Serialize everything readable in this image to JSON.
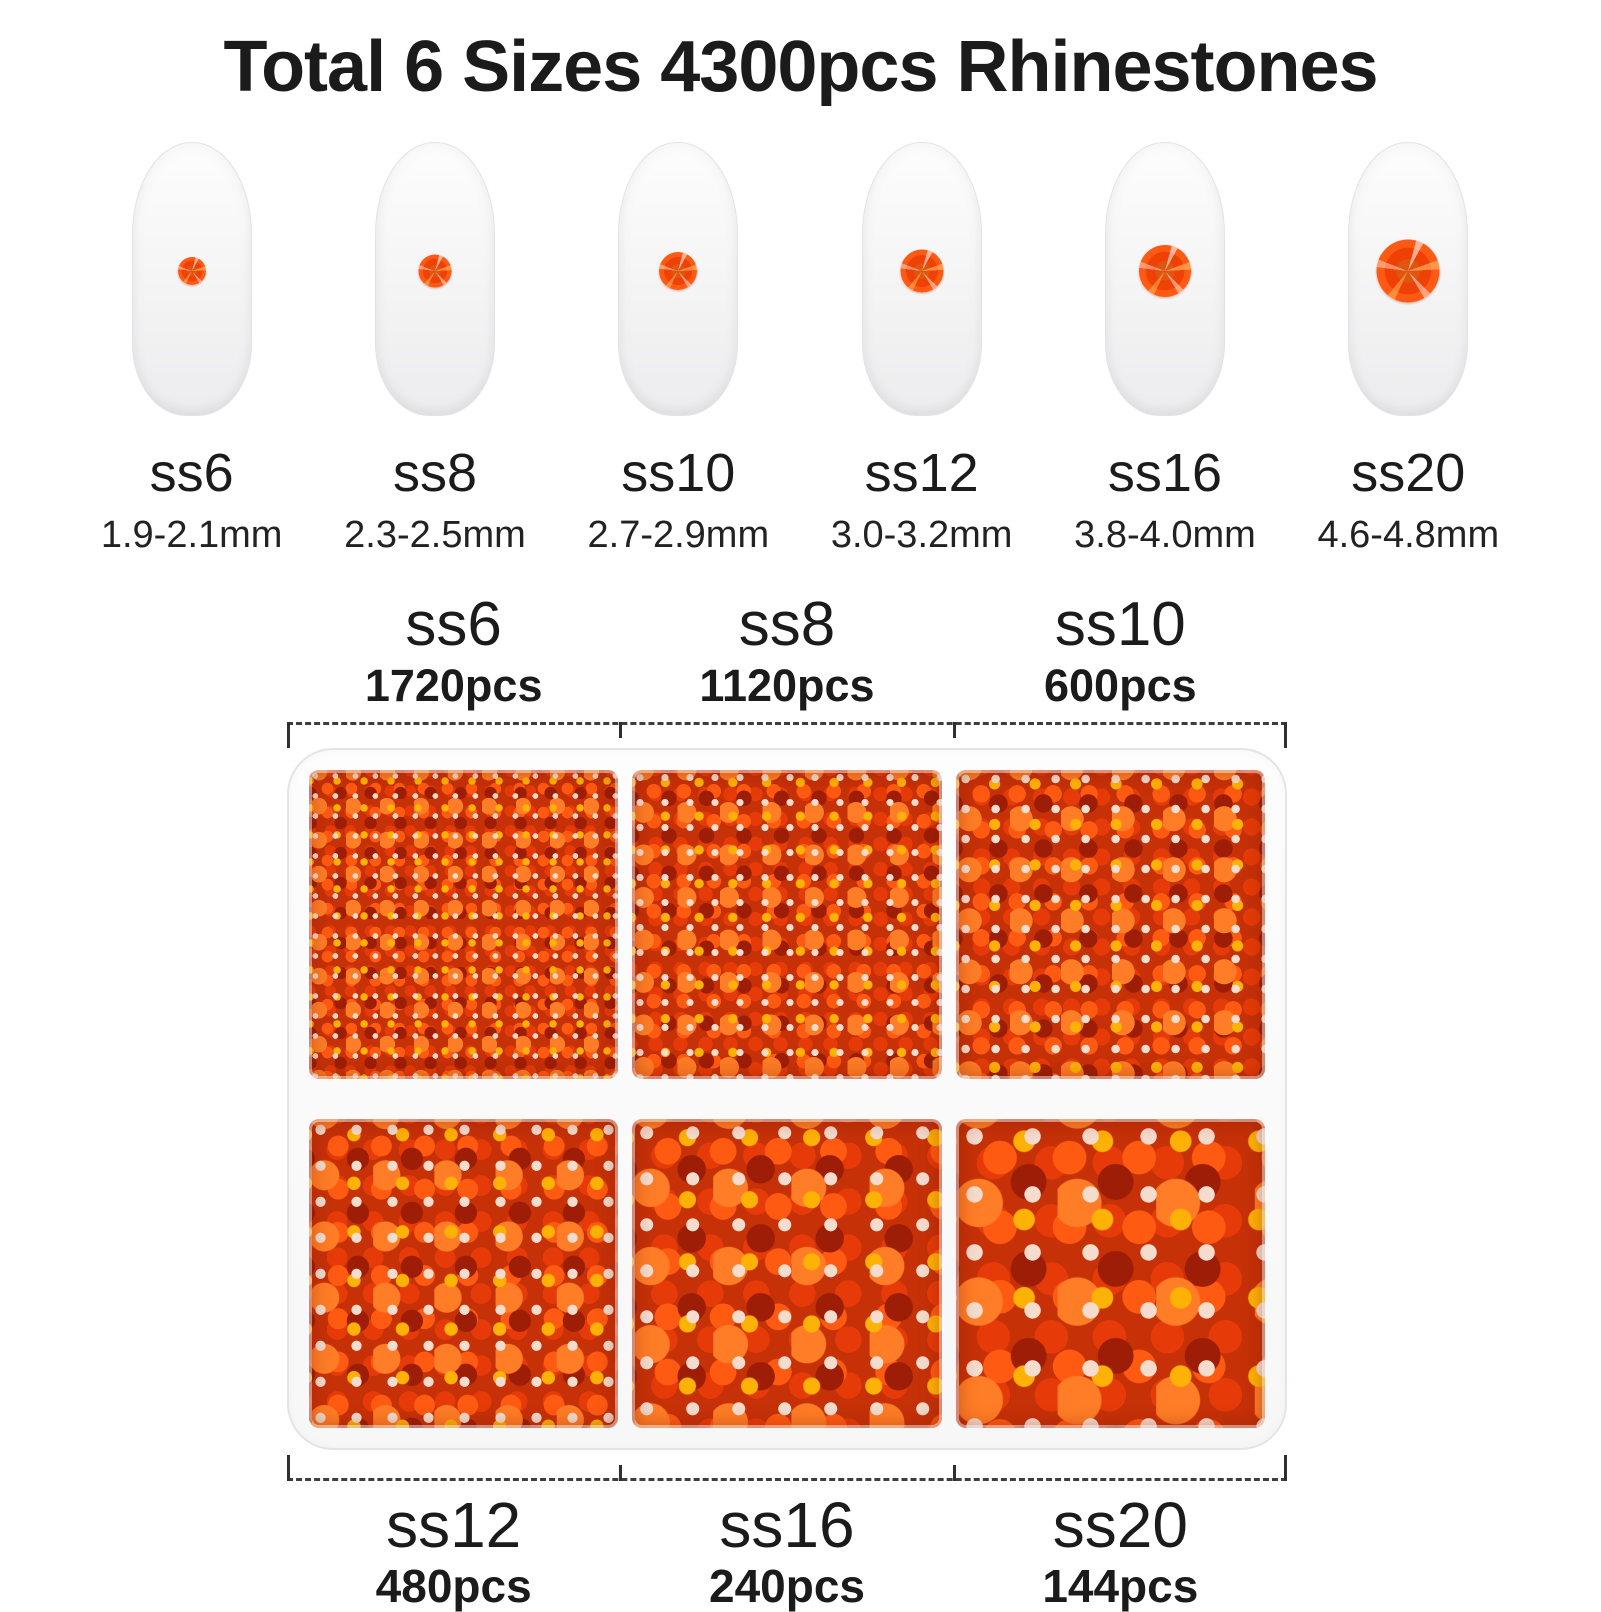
{
  "title": "Total 6 Sizes 4300pcs Rhinestones",
  "nail_samples": [
    {
      "size": "ss6",
      "diameter": "1.9-2.1mm"
    },
    {
      "size": "ss8",
      "diameter": "2.3-2.5mm"
    },
    {
      "size": "ss10",
      "diameter": "2.7-2.9mm"
    },
    {
      "size": "ss12",
      "diameter": "3.0-3.2mm"
    },
    {
      "size": "ss16",
      "diameter": "3.8-4.0mm"
    },
    {
      "size": "ss20",
      "diameter": "4.6-4.8mm"
    }
  ],
  "box_labels": {
    "top": [
      {
        "size": "ss6",
        "count": "1720pcs"
      },
      {
        "size": "ss8",
        "count": "1120pcs"
      },
      {
        "size": "ss10",
        "count": "600pcs"
      }
    ],
    "bottom": [
      {
        "size": "ss12",
        "count": "480pcs"
      },
      {
        "size": "ss16",
        "count": "240pcs"
      },
      {
        "size": "ss20",
        "count": "144pcs"
      }
    ]
  },
  "colors": {
    "rhinestone_base": "#e8420c",
    "rhinestone_deep": "#c52a04",
    "rhinestone_glint_gold": "#ffb206",
    "rhinestone_glint_white": "#f6dccd",
    "nail_tip": "#f4f4f5",
    "text": "#1b1b1b",
    "bracket_line": "#3e3e3e"
  }
}
